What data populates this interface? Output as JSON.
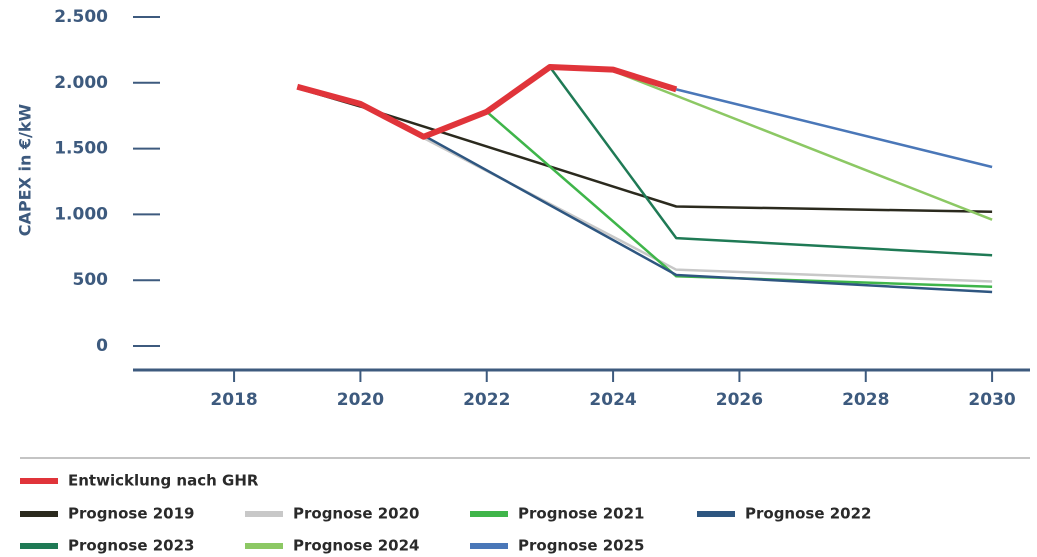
{
  "chart_data": {
    "type": "line",
    "y_label": "CAPEX in €/kW",
    "xlim": [
      2016.4,
      2030.6
    ],
    "xticks": [
      2018,
      2020,
      2022,
      2024,
      2026,
      2028,
      2030
    ],
    "ylim": [
      0,
      2500
    ],
    "yticks": [
      0,
      500,
      {
        "value": 1000,
        "label": "1.000"
      },
      {
        "value": 1500,
        "label": "1.500"
      },
      {
        "value": 2000,
        "label": "2.000"
      },
      {
        "value": 2500,
        "label": "2.500"
      }
    ],
    "series": [
      {
        "name": "Prognose 2019",
        "color": "#2b2a1e",
        "x": [
          2019,
          2020,
          2025,
          2030
        ],
        "values": [
          1960,
          1820,
          1060,
          1020
        ]
      },
      {
        "name": "Prognose 2020",
        "color": "#c8c8c8",
        "x": [
          2020,
          2021,
          2025,
          2030
        ],
        "values": [
          1850,
          1580,
          580,
          490
        ]
      },
      {
        "name": "Prognose 2021",
        "color": "#3fb54a",
        "x": [
          2022,
          2025,
          2030
        ],
        "values": [
          1780,
          530,
          450
        ]
      },
      {
        "name": "Prognose 2022",
        "color": "#2e5680",
        "x": [
          2021,
          2025,
          2030
        ],
        "values": [
          1600,
          540,
          410
        ]
      },
      {
        "name": "Prognose 2023",
        "color": "#1f7a55",
        "x": [
          2023,
          2025,
          2030
        ],
        "values": [
          2120,
          820,
          690
        ]
      },
      {
        "name": "Prognose 2024",
        "color": "#8cc864",
        "x": [
          2024,
          2030
        ],
        "values": [
          2090,
          960
        ]
      },
      {
        "name": "Prognose 2025",
        "color": "#4a77b8",
        "x": [
          2025,
          2030
        ],
        "values": [
          1950,
          1360
        ]
      },
      {
        "name": "Entwicklung nach GHR",
        "color": "#e0343a",
        "x": [
          2019,
          2020,
          2021,
          2022,
          2023,
          2024,
          2025
        ],
        "values": [
          1970,
          1840,
          1590,
          1780,
          2120,
          2100,
          1950
        ]
      }
    ]
  }
}
